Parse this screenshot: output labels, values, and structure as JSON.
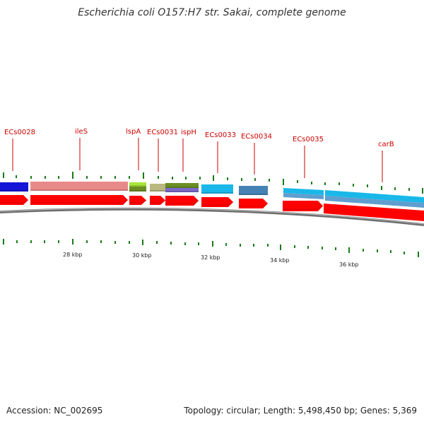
{
  "title": "Escherichia coli O157:H7 str. Sakai, complete genome",
  "accession": "Accession: NC_002695",
  "topology": "Topology: circular; Length: 5,498,450 bp; Genes: 5,369",
  "colors": {
    "cds_arrow": "#ff0000",
    "backbone": "#808080",
    "tick": "#1a7a1a",
    "label": "#cc0000"
  },
  "gene_labels": [
    "ECs0028",
    "ileS",
    "lspA",
    "ECs0031",
    "ispH",
    "ECs0033",
    "ECs0034",
    "ECs0035",
    "carB"
  ],
  "kbp_labels": [
    "28 kbp",
    "30 kbp",
    "32 kbp",
    "34 kbp",
    "36 kbp"
  ],
  "gene_colors": [
    "#1515d8",
    "#e98a8a",
    "#a8e63a",
    "#b8b880",
    "#6b8e23",
    "#7b68c9",
    "#19b8e8",
    "#4682b4",
    "#5f9fd0",
    "#19b8e8"
  ]
}
